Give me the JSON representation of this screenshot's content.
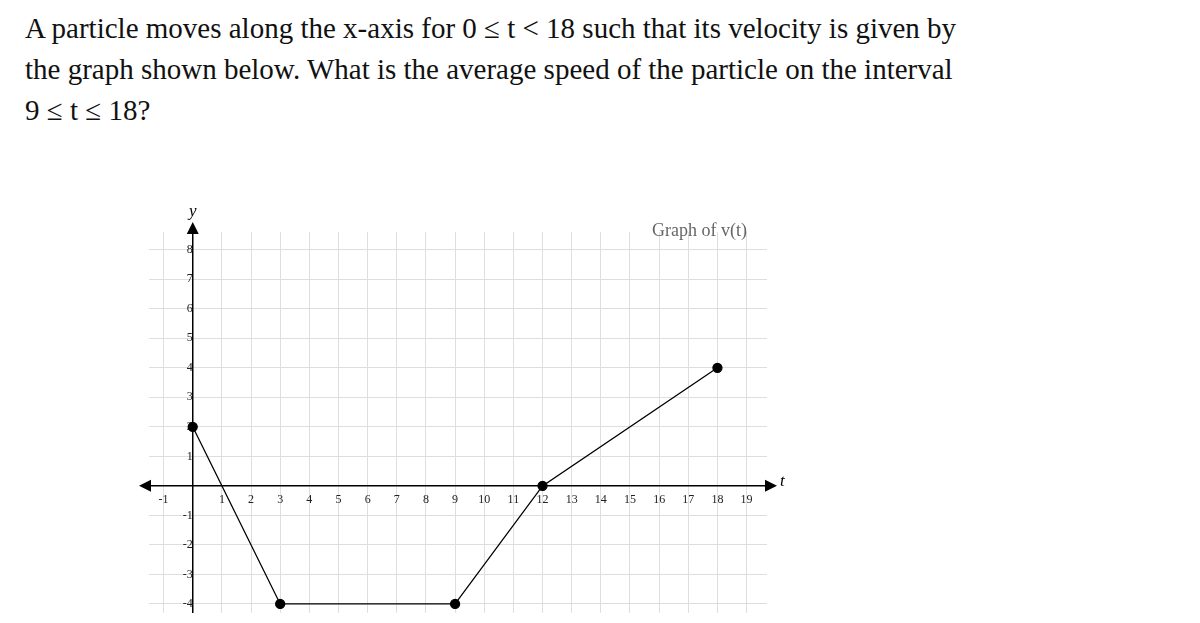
{
  "question": [
    "A particle moves along the x-axis for 0 ≤ t < 18 such that its velocity is given by",
    "the graph shown below. What is the average speed of the particle on the interval",
    "9 ≤ t ≤ 18?"
  ],
  "chart_data": {
    "type": "line",
    "title": "Graph of v(t)",
    "x_label": "t",
    "y_label": "y",
    "x": [
      0,
      3,
      9,
      12,
      18
    ],
    "series": [
      {
        "name": "v(t)",
        "color": "#000000",
        "marker": "circle",
        "line_style": "solid",
        "values": [
          2,
          -4,
          -4,
          0,
          4
        ]
      }
    ],
    "xlim": [
      -1.5,
      19.7
    ],
    "ylim": [
      -4.3,
      8.6
    ],
    "xticks": [
      -1,
      1,
      2,
      3,
      4,
      5,
      6,
      7,
      8,
      9,
      10,
      11,
      12,
      13,
      14,
      15,
      16,
      17,
      18,
      19
    ],
    "yticks": [
      -4,
      -3,
      -2,
      -1,
      1,
      2,
      3,
      4,
      5,
      6,
      7,
      8
    ],
    "grid": true
  }
}
